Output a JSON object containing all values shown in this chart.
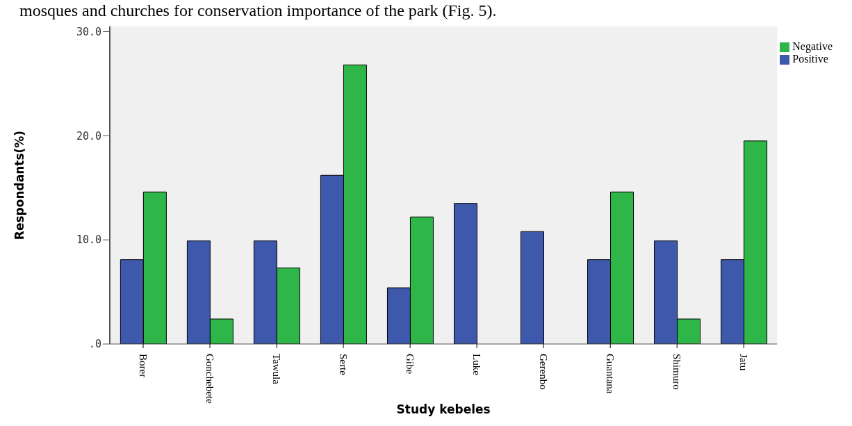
{
  "chart_data": {
    "type": "bar",
    "xlabel": "Study kebeles",
    "ylabel": "Respondants(%)",
    "annotations": [
      "mosques and churches for conservation importance of the park (Fig. 5)."
    ],
    "categories": [
      "Borer",
      "Gonchebete",
      "Tawula",
      "Serte",
      "Gibe",
      "Luke",
      "Gerenbo",
      "Guantana",
      "Shimuro",
      "Jatu"
    ],
    "series": [
      {
        "name": "Positive",
        "color": "#3e58ac",
        "values": [
          8.1,
          9.9,
          9.9,
          16.2,
          5.4,
          13.5,
          10.8,
          8.1,
          9.9,
          8.1
        ]
      },
      {
        "name": "Negative",
        "color": "#2eb748",
        "values": [
          14.6,
          2.4,
          7.3,
          26.8,
          12.2,
          0,
          0,
          14.6,
          2.4,
          19.5
        ]
      }
    ],
    "ylim": [
      0,
      30.5
    ],
    "yticks": [
      {
        "value": 0,
        "label": ".0"
      },
      {
        "value": 10,
        "label": "10.0"
      },
      {
        "value": 20,
        "label": "20.0"
      },
      {
        "value": 30,
        "label": "30.0"
      }
    ],
    "grid": false,
    "legend": "top right"
  }
}
